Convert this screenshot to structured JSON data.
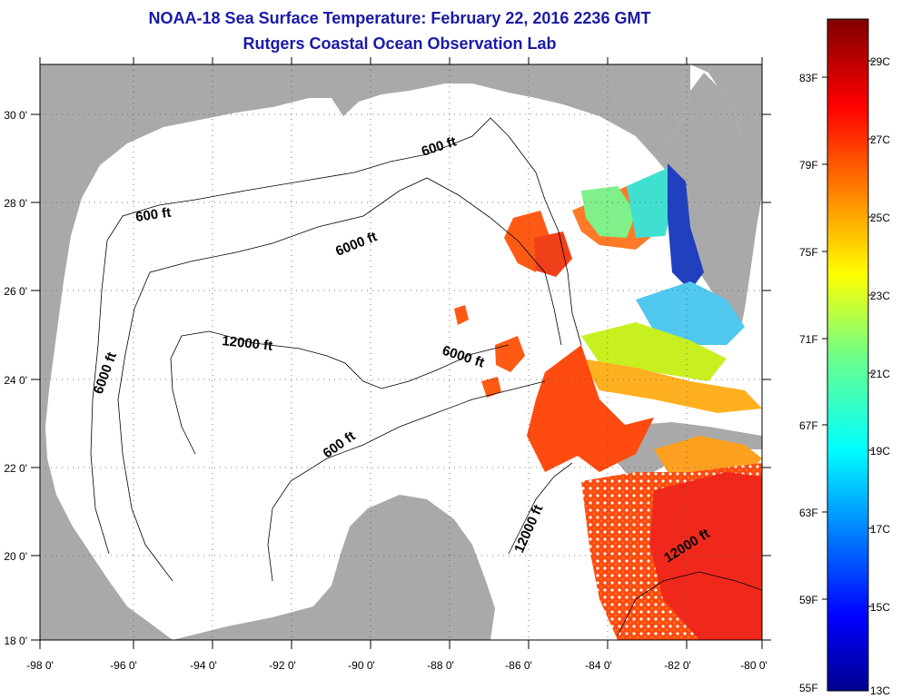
{
  "header": {
    "title": "NOAA-18 Sea Surface Temperature:  February 22, 2016 2236 GMT",
    "subtitle": "Rutgers Coastal Ocean Observation Lab"
  },
  "map": {
    "lon_ticks": [
      "-98 0'",
      "-96 0'",
      "-94 0'",
      "-92 0'",
      "-90 0'",
      "-88 0'",
      "-86 0'",
      "-84 0'",
      "-82 0'",
      "-80 0'"
    ],
    "lat_ticks": [
      "18 0'",
      "20 0'",
      "22 0'",
      "24 0'",
      "26 0'",
      "28 0'",
      "30 0'"
    ],
    "contour_labels": [
      "600 ft",
      "600 ft",
      "600 ft",
      "6000 ft",
      "6000 ft",
      "6000 ft",
      "12000 ft",
      "12000 ft",
      "12000 ft"
    ],
    "colors": {
      "land": "#a9a9a9",
      "ocean_no_data": "#ffffff",
      "warm": "#ff4a10",
      "hot": "#f0281c"
    }
  },
  "colorbar": {
    "celsius_labels": [
      "29C",
      "27C",
      "25C",
      "23C",
      "21C",
      "19C",
      "17C",
      "15C",
      "13C"
    ],
    "fahrenheit_labels": [
      "83F",
      "79F",
      "75F",
      "71F",
      "67F",
      "63F",
      "59F",
      "55F"
    ],
    "colormap": "jet",
    "range_c": [
      13,
      30
    ]
  }
}
